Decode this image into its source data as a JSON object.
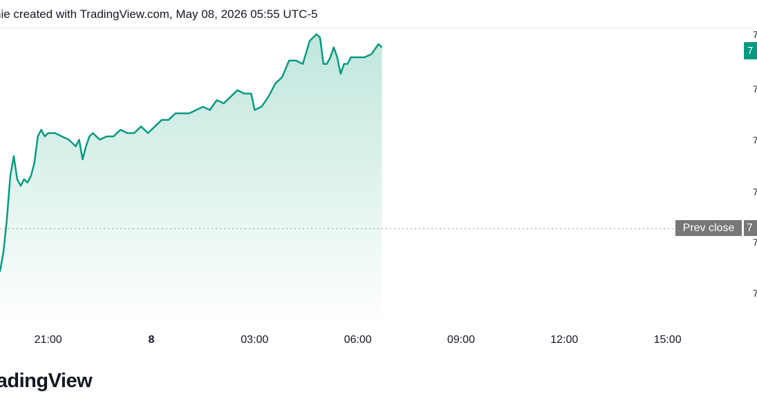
{
  "header": {
    "caption": "nie created with TradingView.com, May 08, 2026 05:55 UTC-5"
  },
  "brand": {
    "name": "radingView"
  },
  "badges": {
    "prev_close_label": "Prev close",
    "prev_close_value": "7",
    "last_price_value": "7"
  },
  "colors": {
    "line": "#089981",
    "area_top": "#bfe6dc",
    "area_bottom": "#ffffff",
    "prev_close_line": "#9598a1",
    "badge_gray": "#777777",
    "badge_green": "#089981"
  },
  "chart_data": {
    "type": "area",
    "title": "",
    "xlabel": "",
    "ylabel": "",
    "x_ticks": [
      {
        "label": "21:00",
        "hour": 21,
        "bold": false
      },
      {
        "label": "8",
        "hour": 24,
        "bold": true
      },
      {
        "label": "03:00",
        "hour": 27,
        "bold": false
      },
      {
        "label": "06:00",
        "hour": 30,
        "bold": false
      },
      {
        "label": "09:00",
        "hour": 33,
        "bold": false
      },
      {
        "label": "12:00",
        "hour": 36,
        "bold": false
      },
      {
        "label": "15:00",
        "hour": 39,
        "bold": false
      }
    ],
    "y_tick_labels": [
      "7",
      "7",
      "7",
      "7",
      "7",
      "7"
    ],
    "prev_close": 0.0,
    "xlim": [
      19.6,
      41.6
    ],
    "ylim": [
      -2.9,
      6.1
    ],
    "grid": false,
    "legend": "none",
    "series": [
      {
        "points": [
          [
            19.6,
            -1.3
          ],
          [
            19.7,
            -0.7
          ],
          [
            19.8,
            0.3
          ],
          [
            19.9,
            1.6
          ],
          [
            20.0,
            2.2
          ],
          [
            20.1,
            1.5
          ],
          [
            20.2,
            1.3
          ],
          [
            20.3,
            1.5
          ],
          [
            20.4,
            1.4
          ],
          [
            20.5,
            1.6
          ],
          [
            20.6,
            2.0
          ],
          [
            20.7,
            2.8
          ],
          [
            20.8,
            3.0
          ],
          [
            20.9,
            2.8
          ],
          [
            21.0,
            2.9
          ],
          [
            21.2,
            2.9
          ],
          [
            21.4,
            2.8
          ],
          [
            21.6,
            2.7
          ],
          [
            21.8,
            2.5
          ],
          [
            21.9,
            2.7
          ],
          [
            22.0,
            2.1
          ],
          [
            22.1,
            2.5
          ],
          [
            22.2,
            2.8
          ],
          [
            22.3,
            2.9
          ],
          [
            22.5,
            2.7
          ],
          [
            22.7,
            2.8
          ],
          [
            22.9,
            2.8
          ],
          [
            23.1,
            3.0
          ],
          [
            23.3,
            2.9
          ],
          [
            23.5,
            2.9
          ],
          [
            23.7,
            3.1
          ],
          [
            23.9,
            2.9
          ],
          [
            24.1,
            3.1
          ],
          [
            24.3,
            3.3
          ],
          [
            24.5,
            3.3
          ],
          [
            24.7,
            3.5
          ],
          [
            24.9,
            3.5
          ],
          [
            25.1,
            3.5
          ],
          [
            25.3,
            3.6
          ],
          [
            25.5,
            3.7
          ],
          [
            25.7,
            3.6
          ],
          [
            25.9,
            3.9
          ],
          [
            26.1,
            3.8
          ],
          [
            26.3,
            4.0
          ],
          [
            26.5,
            4.2
          ],
          [
            26.7,
            4.1
          ],
          [
            26.9,
            4.1
          ],
          [
            27.0,
            3.6
          ],
          [
            27.2,
            3.7
          ],
          [
            27.4,
            4.0
          ],
          [
            27.6,
            4.4
          ],
          [
            27.8,
            4.6
          ],
          [
            28.0,
            5.1
          ],
          [
            28.2,
            5.1
          ],
          [
            28.4,
            5.0
          ],
          [
            28.6,
            5.7
          ],
          [
            28.8,
            5.9
          ],
          [
            28.9,
            5.8
          ],
          [
            29.0,
            5.0
          ],
          [
            29.1,
            5.0
          ],
          [
            29.2,
            5.2
          ],
          [
            29.3,
            5.5
          ],
          [
            29.4,
            5.2
          ],
          [
            29.5,
            4.7
          ],
          [
            29.6,
            5.0
          ],
          [
            29.7,
            5.0
          ],
          [
            29.8,
            5.2
          ],
          [
            30.0,
            5.2
          ],
          [
            30.2,
            5.2
          ],
          [
            30.4,
            5.3
          ],
          [
            30.6,
            5.6
          ],
          [
            30.7,
            5.5
          ]
        ]
      }
    ]
  }
}
